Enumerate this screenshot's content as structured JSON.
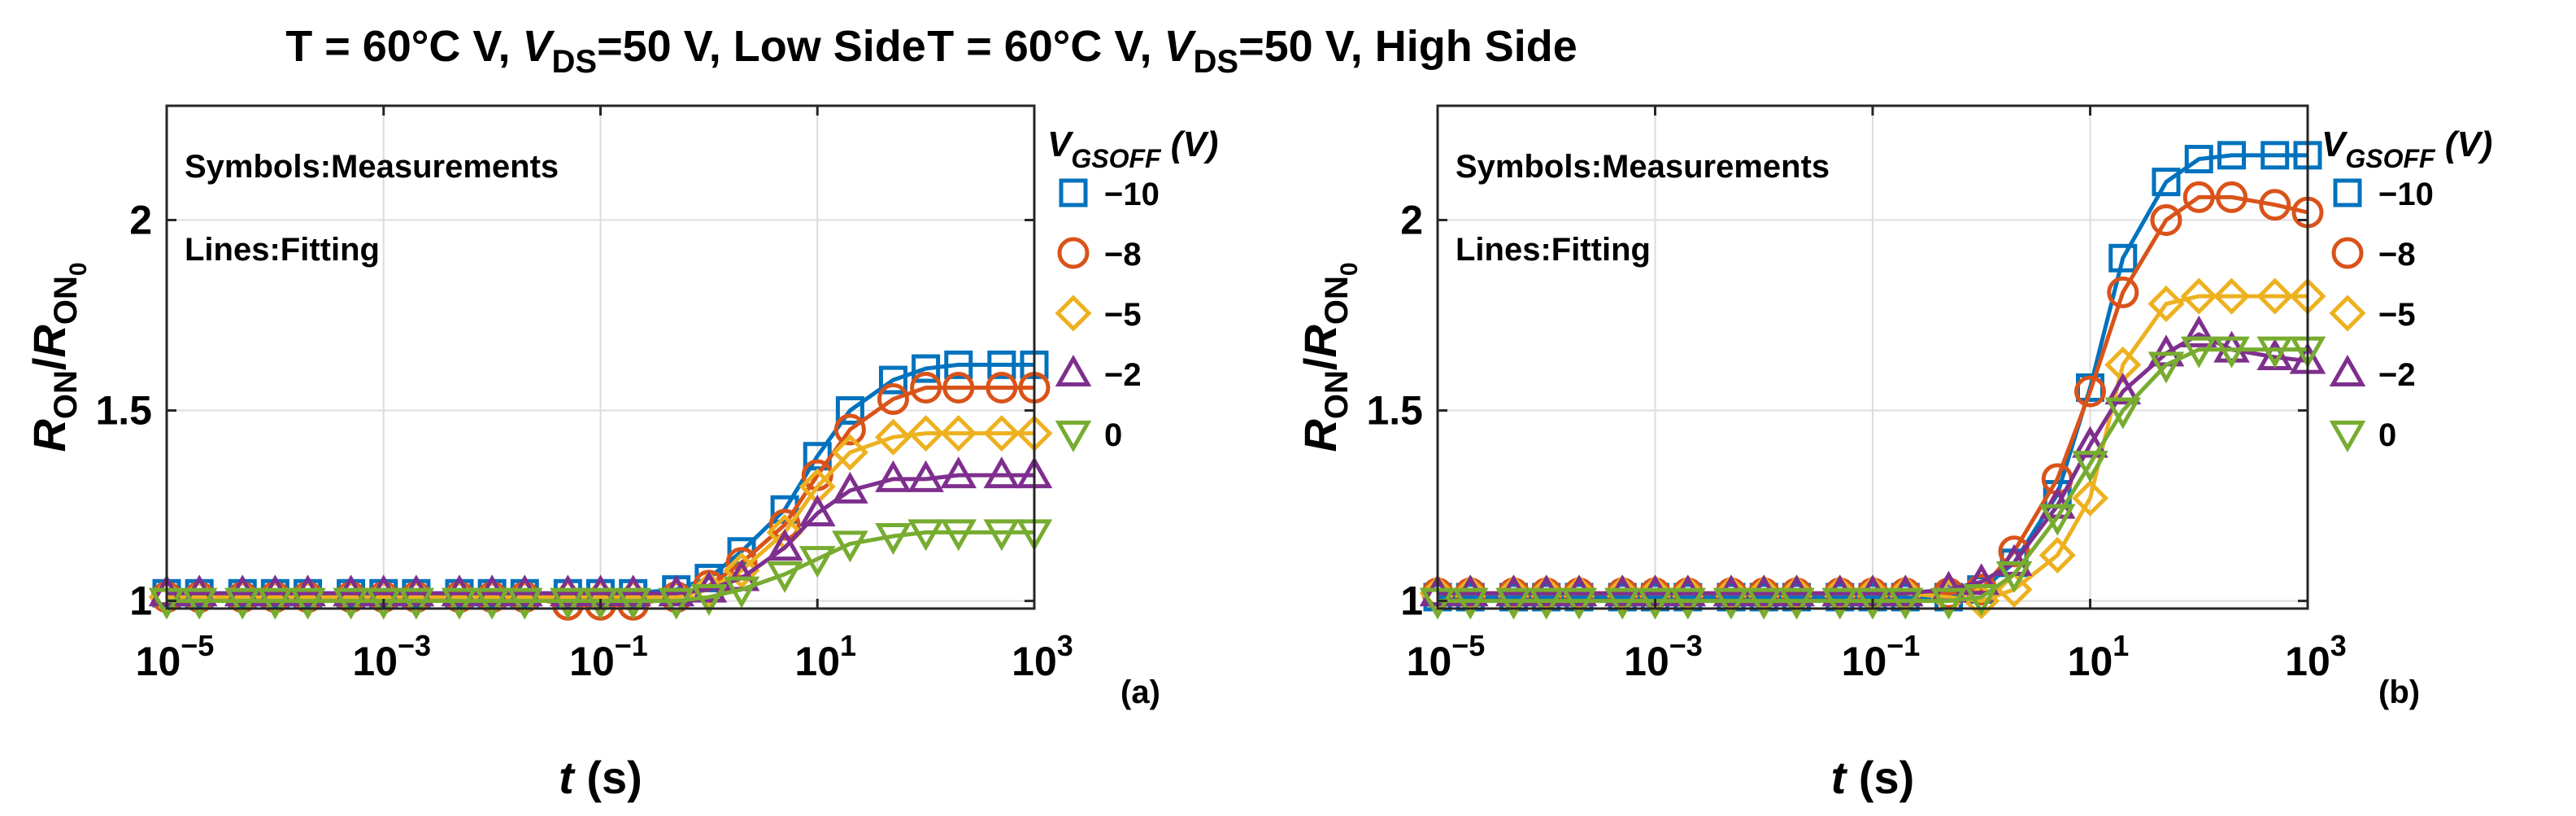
{
  "chart_data": [
    {
      "type": "line",
      "title_prefix": "T = 60°C V, ",
      "title_var": "V",
      "title_sub": "DS",
      "title_suffix": "=50 V, Low Side",
      "panel_label": "(a)",
      "xlabel_var": "t",
      "xlabel_unit": " (s)",
      "ylabel_num": "R",
      "ylabel_num_sub": "ON",
      "ylabel_slash": "/",
      "ylabel_den": "R",
      "ylabel_den_sub": "ON",
      "ylabel_den_subsub": "0",
      "xscale": "log",
      "xlim": [
        1e-05,
        1000
      ],
      "ylim": [
        0.98,
        2.3
      ],
      "xtick_base": "10",
      "xtick_exponents": [
        "−5",
        "−3",
        "−1",
        "1",
        "3"
      ],
      "ytick_labels": [
        "1",
        "1.5",
        "2"
      ],
      "grid": true,
      "notes": [
        "Symbols:Measurements",
        "Lines:Fitting"
      ],
      "legend_title_var": "V",
      "legend_title_sub": "GSOFF",
      "legend_title_unit": " (V)",
      "legend_position": "right outside",
      "x": [
        1e-05,
        2e-05,
        5e-05,
        0.0001,
        0.0002,
        0.0005,
        0.001,
        0.002,
        0.005,
        0.01,
        0.02,
        0.05,
        0.1,
        0.2,
        0.5,
        1,
        2,
        5,
        10,
        20,
        50,
        100,
        200,
        500,
        1000
      ],
      "series": [
        {
          "name": "−10",
          "color": "#0072BD",
          "marker": "square",
          "values": [
            1.02,
            1.02,
            1.02,
            1.02,
            1.02,
            1.02,
            1.02,
            1.02,
            1.02,
            1.02,
            1.02,
            1.02,
            1.02,
            1.02,
            1.03,
            1.06,
            1.13,
            1.24,
            1.38,
            1.5,
            1.58,
            1.61,
            1.62,
            1.62,
            1.62
          ]
        },
        {
          "name": "−8",
          "color": "#D95319",
          "marker": "circle",
          "values": [
            1.01,
            1.01,
            1.01,
            1.01,
            1.01,
            1.01,
            1.01,
            1.01,
            1.01,
            1.01,
            1.01,
            0.99,
            0.99,
            0.99,
            1.01,
            1.04,
            1.1,
            1.2,
            1.33,
            1.45,
            1.53,
            1.56,
            1.56,
            1.56,
            1.56
          ]
        },
        {
          "name": "−5",
          "color": "#EDB120",
          "marker": "diamond",
          "values": [
            1.01,
            1.01,
            1.01,
            1.01,
            1.01,
            1.01,
            1.01,
            1.01,
            1.01,
            1.01,
            1.01,
            1.01,
            1.01,
            1.01,
            1.01,
            1.03,
            1.08,
            1.18,
            1.3,
            1.39,
            1.43,
            1.44,
            1.44,
            1.44,
            1.44
          ]
        },
        {
          "name": "−2",
          "color": "#7E2F8E",
          "marker": "triangle-up",
          "values": [
            1.02,
            1.02,
            1.02,
            1.02,
            1.02,
            1.02,
            1.02,
            1.02,
            1.02,
            1.02,
            1.02,
            1.02,
            1.02,
            1.02,
            1.02,
            1.03,
            1.06,
            1.14,
            1.23,
            1.29,
            1.32,
            1.32,
            1.33,
            1.33,
            1.33
          ]
        },
        {
          "name": "0",
          "color": "#77AC30",
          "marker": "triangle-down",
          "values": [
            1.0,
            1.0,
            1.0,
            1.0,
            1.0,
            1.0,
            1.0,
            1.0,
            1.0,
            1.0,
            1.0,
            1.0,
            1.0,
            1.0,
            1.0,
            1.01,
            1.03,
            1.07,
            1.11,
            1.15,
            1.17,
            1.18,
            1.18,
            1.18,
            1.18
          ]
        }
      ]
    },
    {
      "type": "line",
      "title_prefix": "T = 60°C V, ",
      "title_var": "V",
      "title_sub": "DS",
      "title_suffix": "=50 V, High Side",
      "panel_label": "(b)",
      "xlabel_var": "t",
      "xlabel_unit": " (s)",
      "ylabel_num": "R",
      "ylabel_num_sub": "ON",
      "ylabel_slash": "/",
      "ylabel_den": "R",
      "ylabel_den_sub": "ON",
      "ylabel_den_subsub": "0",
      "xscale": "log",
      "xlim": [
        1e-05,
        1000
      ],
      "ylim": [
        0.98,
        2.3
      ],
      "xtick_base": "10",
      "xtick_exponents": [
        "−5",
        "−3",
        "−1",
        "1",
        "3"
      ],
      "ytick_labels": [
        "1",
        "1.5",
        "2"
      ],
      "grid": true,
      "notes": [
        "Symbols:Measurements",
        "Lines:Fitting"
      ],
      "legend_title_var": "V",
      "legend_title_sub": "GSOFF",
      "legend_title_unit": " (V)",
      "legend_position": "right outside",
      "x": [
        1e-05,
        2e-05,
        5e-05,
        0.0001,
        0.0002,
        0.0005,
        0.001,
        0.002,
        0.005,
        0.01,
        0.02,
        0.05,
        0.1,
        0.2,
        0.5,
        1,
        2,
        5,
        10,
        20,
        50,
        100,
        200,
        500,
        1000
      ],
      "series": [
        {
          "name": "−10",
          "color": "#0072BD",
          "marker": "square",
          "values": [
            1.01,
            1.01,
            1.01,
            1.01,
            1.01,
            1.01,
            1.01,
            1.01,
            1.01,
            1.01,
            1.01,
            1.01,
            1.01,
            1.01,
            1.01,
            1.03,
            1.1,
            1.28,
            1.56,
            1.9,
            2.1,
            2.16,
            2.17,
            2.17,
            2.17
          ]
        },
        {
          "name": "−8",
          "color": "#D95319",
          "marker": "circle",
          "values": [
            1.02,
            1.02,
            1.02,
            1.02,
            1.02,
            1.02,
            1.02,
            1.02,
            1.02,
            1.02,
            1.02,
            1.02,
            1.02,
            1.02,
            1.02,
            1.03,
            1.13,
            1.32,
            1.55,
            1.81,
            2.0,
            2.06,
            2.06,
            2.04,
            2.02
          ]
        },
        {
          "name": "−5",
          "color": "#EDB120",
          "marker": "diamond",
          "values": [
            1.02,
            1.02,
            1.02,
            1.02,
            1.02,
            1.02,
            1.02,
            1.02,
            1.02,
            1.02,
            1.02,
            1.02,
            1.02,
            1.02,
            1.01,
            1.0,
            1.03,
            1.12,
            1.27,
            1.62,
            1.78,
            1.8,
            1.8,
            1.8,
            1.8
          ]
        },
        {
          "name": "−2",
          "color": "#7E2F8E",
          "marker": "triangle-up",
          "values": [
            1.02,
            1.02,
            1.02,
            1.02,
            1.02,
            1.02,
            1.02,
            1.02,
            1.02,
            1.02,
            1.02,
            1.02,
            1.02,
            1.02,
            1.03,
            1.05,
            1.1,
            1.25,
            1.41,
            1.55,
            1.65,
            1.7,
            1.66,
            1.64,
            1.63
          ]
        },
        {
          "name": "0",
          "color": "#77AC30",
          "marker": "triangle-down",
          "values": [
            1.0,
            1.0,
            1.0,
            1.0,
            1.0,
            1.0,
            1.0,
            1.0,
            1.0,
            1.0,
            1.0,
            1.0,
            1.0,
            1.0,
            1.0,
            1.01,
            1.07,
            1.22,
            1.36,
            1.5,
            1.62,
            1.66,
            1.66,
            1.66,
            1.66
          ]
        }
      ]
    }
  ]
}
